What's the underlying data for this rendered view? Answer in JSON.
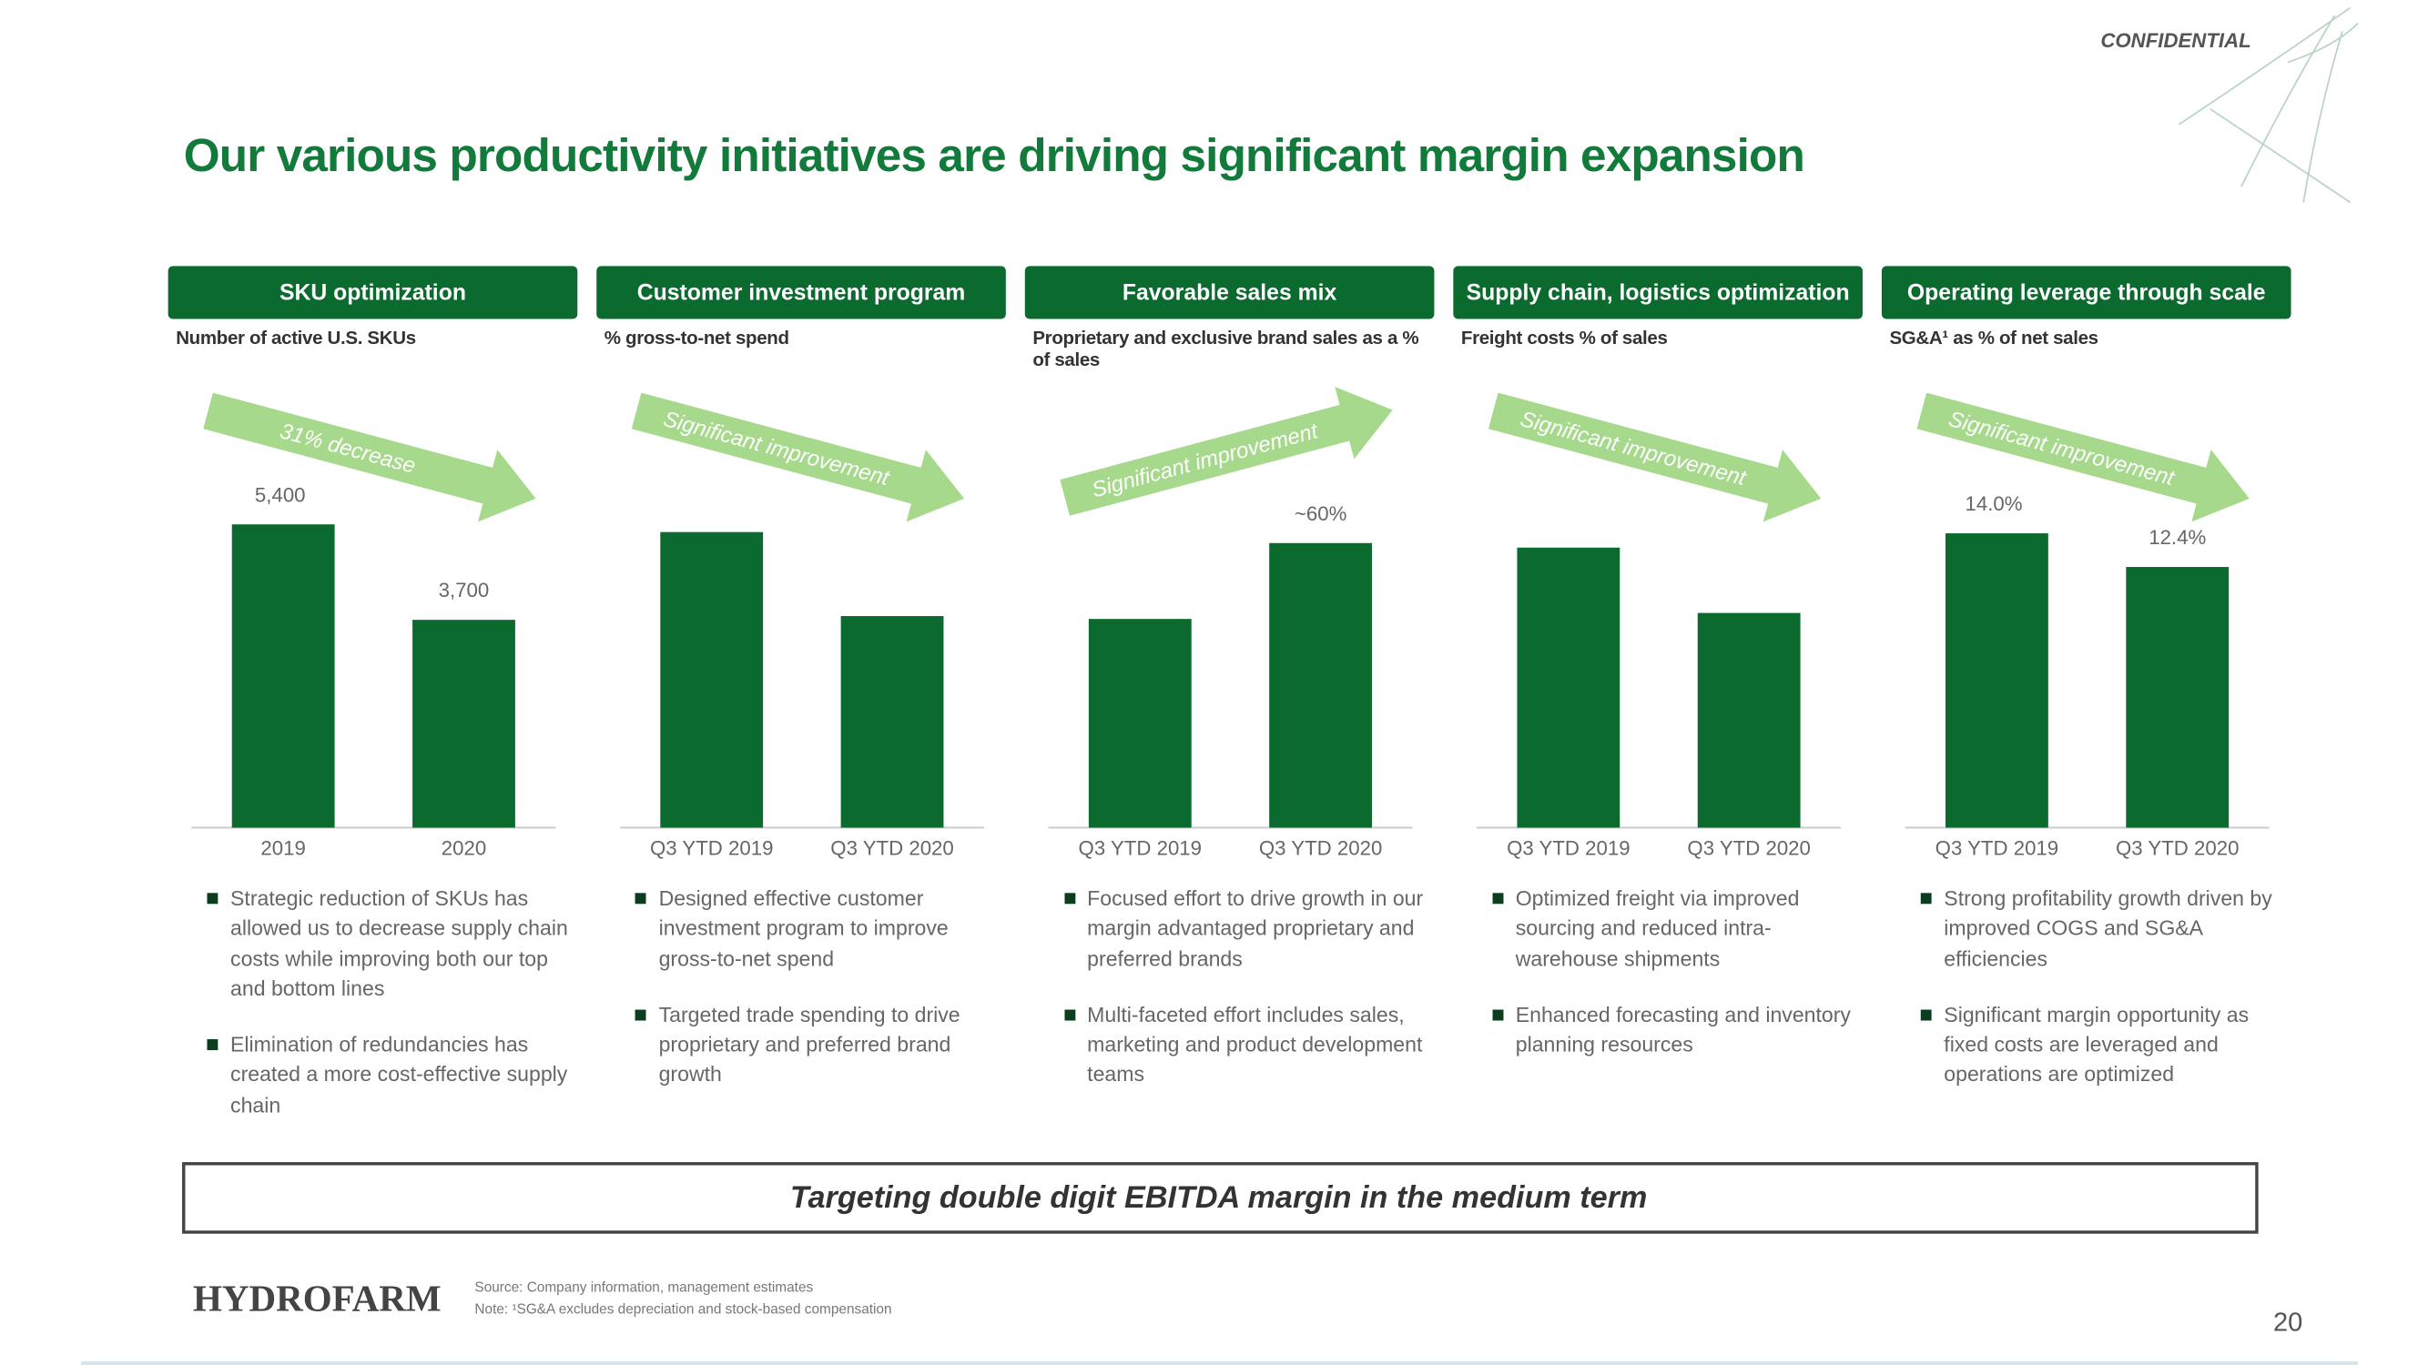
{
  "confidential": "CONFIDENTIAL",
  "title": "Our various productivity initiatives are driving significant margin expansion",
  "chart_data": [
    {
      "type": "bar",
      "header": "SKU optimization",
      "subtitle": "Number of active U.S. SKUs",
      "annotation": "31% decrease",
      "categories": [
        "2019",
        "2020"
      ],
      "values": [
        5400,
        3700
      ],
      "value_labels": [
        "5,400",
        "3,700"
      ],
      "color": "#0b6b2f",
      "ylim": [
        0,
        5540
      ],
      "bullets": [
        "Strategic reduction of SKUs has allowed us to decrease supply chain costs while improving both our top and bottom lines",
        "Elimination of redundancies has created a more cost-effective supply chain"
      ]
    },
    {
      "type": "bar",
      "header": "Customer investment program",
      "subtitle": "% gross-to-net spend",
      "annotation": "Significant improvement",
      "categories": [
        "Q3 YTD 2019",
        "Q3 YTD 2020"
      ],
      "values": [
        95,
        68
      ],
      "color": "#0b6b2f",
      "ylim": [
        0,
        100
      ],
      "bullets": [
        "Designed effective customer investment program to improve gross-to-net spend",
        "Targeted trade spending to drive proprietary and preferred brand growth"
      ]
    },
    {
      "type": "bar",
      "header": "Favorable sales mix",
      "subtitle": "Proprietary and exclusive brand sales as a % of sales",
      "annotation": "Significant improvement",
      "categories": [
        "Q3 YTD 2019",
        "Q3 YTD 2020"
      ],
      "values": [
        44,
        60
      ],
      "value_labels": [
        null,
        "~60%"
      ],
      "color": "#0b6b2f",
      "ylim": [
        0,
        65.6
      ],
      "bullets": [
        "Focused effort to drive growth in our margin advantaged proprietary and preferred brands",
        "Multi-faceted effort includes sales, marketing and product development teams"
      ]
    },
    {
      "type": "bar",
      "header": "Supply chain, logistics optimization",
      "subtitle": "Freight costs % of sales",
      "annotation": "Significant improvement",
      "categories": [
        "Q3 YTD 2019",
        "Q3 YTD 2020"
      ],
      "values": [
        90,
        69
      ],
      "color": "#0b6b2f",
      "ylim": [
        0,
        100
      ],
      "bullets": [
        "Optimized freight via improved sourcing and reduced intra-warehouse shipments",
        "Enhanced forecasting and inventory planning resources"
      ]
    },
    {
      "type": "bar",
      "header": "Operating leverage through scale",
      "subtitle": "SG&A¹ as % of net sales",
      "annotation": "Significant improvement",
      "categories": [
        "Q3 YTD 2019",
        "Q3 YTD 2020"
      ],
      "values": [
        14.0,
        12.4
      ],
      "value_labels": [
        "14.0%",
        "12.4%"
      ],
      "color": "#0b6b2f",
      "ylim": [
        0,
        14.8
      ],
      "bullets": [
        "Strong profitability growth driven by improved COGS and SG&A efficiencies",
        "Significant margin opportunity as fixed costs are leveraged and operations are optimized"
      ]
    }
  ],
  "banner": "Targeting double digit EBITDA margin in the medium term",
  "logo": "HYDROFARM",
  "footnotes": [
    "Source: Company information, management estimates",
    "Note: ¹SG&A excludes depreciation and stock-based compensation"
  ],
  "page_number": "20"
}
